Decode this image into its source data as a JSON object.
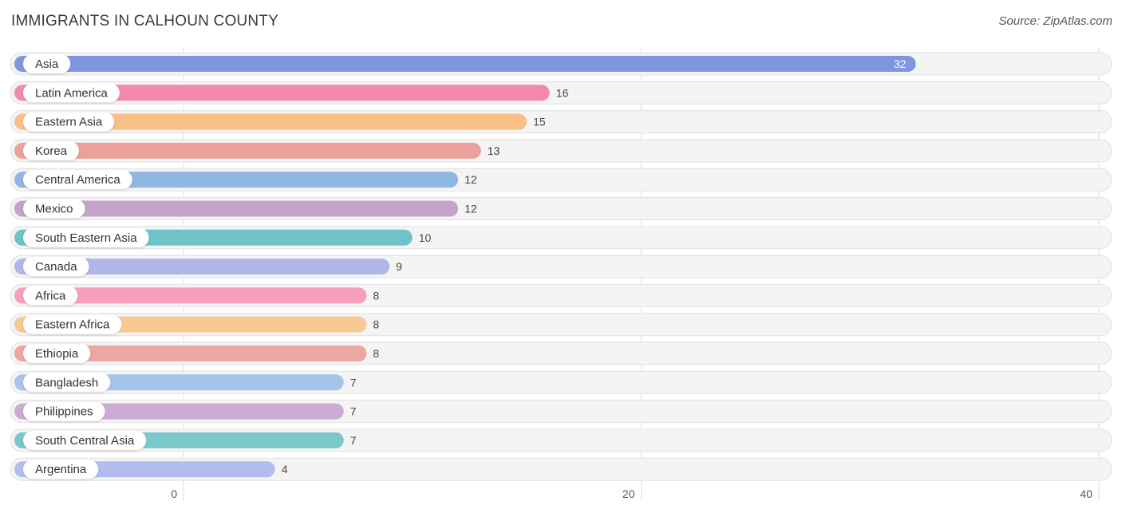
{
  "title": "IMMIGRANTS IN CALHOUN COUNTY",
  "source": "Source: ZipAtlas.com",
  "chart_data": {
    "type": "bar",
    "orientation": "horizontal",
    "title": "IMMIGRANTS IN CALHOUN COUNTY",
    "categories": [
      "Asia",
      "Latin America",
      "Eastern Asia",
      "Korea",
      "Central America",
      "Mexico",
      "South Eastern Asia",
      "Canada",
      "Africa",
      "Eastern Africa",
      "Ethiopia",
      "Bangladesh",
      "Philippines",
      "South Central Asia",
      "Argentina"
    ],
    "values": [
      32,
      16,
      15,
      13,
      12,
      12,
      10,
      9,
      8,
      8,
      8,
      7,
      7,
      7,
      4
    ],
    "colors": [
      "#7f96df",
      "#f48aab",
      "#f8bf87",
      "#eaa09b",
      "#90b6e3",
      "#c4a3c8",
      "#6cc3c8",
      "#aeb7e8",
      "#f7a0bd",
      "#f8c993",
      "#eda7a3",
      "#a4c4ea",
      "#cbabd2",
      "#7bc7cc",
      "#b3bded"
    ],
    "xlim": [
      0,
      40
    ],
    "xticks": [
      0,
      20,
      40
    ],
    "grid": true
  }
}
